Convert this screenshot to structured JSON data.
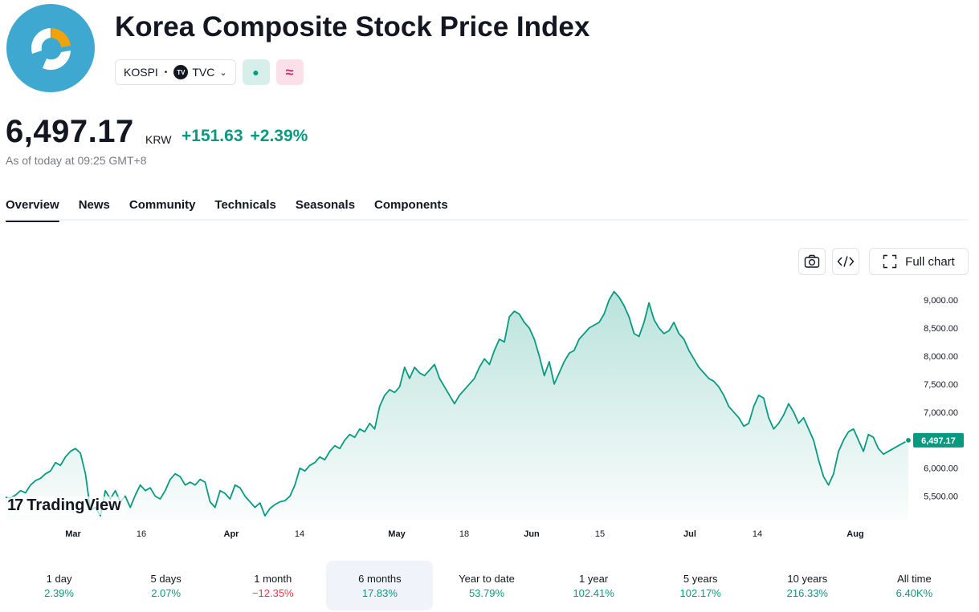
{
  "header": {
    "title": "Korea Composite Stock Price Index",
    "symbol": "KOSPI",
    "exchange": "TVC",
    "exchange_logo": "TV",
    "status_icon": "●",
    "wave_icon": "≈"
  },
  "quote": {
    "price": "6,497.17",
    "currency": "KRW",
    "change": "+151.63",
    "change_pct": "+2.39%",
    "as_of": "As of today at 09:25 GMT+8"
  },
  "tabs": [
    "Overview",
    "News",
    "Community",
    "Technicals",
    "Seasonals",
    "Components"
  ],
  "toolbar": {
    "full_chart_label": "Full chart"
  },
  "brand": {
    "logo_mark": "17",
    "name": "TradingView"
  },
  "colors": {
    "accent": "#089981",
    "negative": "#f23645",
    "text": "#131722"
  },
  "chart_data": {
    "type": "area",
    "xlabels": [
      "Mar",
      "16",
      "Apr",
      "14",
      "May",
      "18",
      "Jun",
      "15",
      "Jul",
      "14",
      "Aug"
    ],
    "yticks": [
      "9,000.00",
      "8,500.00",
      "8,000.00",
      "7,500.00",
      "7,000.00",
      "6,000.00",
      "5,500.00"
    ],
    "ytick_values": [
      9000,
      8500,
      8000,
      7500,
      7000,
      6000,
      5500
    ],
    "ylim": [
      5080,
      9200
    ],
    "last_label": "6,497.17",
    "last_value": 6497.17,
    "series": [
      {
        "values": [
          5480,
          5470,
          5520,
          5600,
          5560,
          5700,
          5780,
          5820,
          5900,
          5950,
          6100,
          6050,
          6200,
          6300,
          6350,
          6270,
          5900,
          5250,
          5300,
          5150,
          5600,
          5450,
          5600,
          5400,
          5500,
          5300,
          5520,
          5700,
          5600,
          5650,
          5500,
          5450,
          5600,
          5800,
          5900,
          5850,
          5700,
          5750,
          5700,
          5800,
          5750,
          5400,
          5300,
          5600,
          5550,
          5450,
          5700,
          5650,
          5500,
          5400,
          5300,
          5380,
          5150,
          5280,
          5350,
          5400,
          5420,
          5500,
          5700,
          6000,
          5950,
          6050,
          6100,
          6200,
          6150,
          6300,
          6400,
          6350,
          6500,
          6600,
          6550,
          6700,
          6650,
          6800,
          6700,
          7100,
          7300,
          7400,
          7350,
          7450,
          7800,
          7600,
          7800,
          7700,
          7650,
          7750,
          7850,
          7600,
          7450,
          7300,
          7150,
          7300,
          7400,
          7500,
          7600,
          7800,
          7950,
          7850,
          8100,
          8300,
          8250,
          8700,
          8800,
          8750,
          8600,
          8500,
          8300,
          8000,
          7650,
          7900,
          7500,
          7700,
          7900,
          8050,
          8100,
          8300,
          8400,
          8500,
          8550,
          8600,
          8750,
          9000,
          9150,
          9050,
          8900,
          8700,
          8400,
          8350,
          8600,
          8950,
          8650,
          8500,
          8400,
          8450,
          8600,
          8400,
          8300,
          8100,
          7950,
          7800,
          7700,
          7600,
          7550,
          7450,
          7300,
          7100,
          7000,
          6900,
          6750,
          6800,
          7100,
          7300,
          7250,
          6900,
          6700,
          6800,
          6950,
          7150,
          7000,
          6800,
          6900,
          6700,
          6500,
          6150,
          5850,
          5700,
          5900,
          6300,
          6500,
          6650,
          6700,
          6500,
          6300,
          6600,
          6550,
          6350,
          6250,
          6300,
          6350,
          6400,
          6450,
          6497
        ]
      }
    ]
  },
  "ranges": [
    {
      "label": "1 day",
      "value": "2.39%",
      "dir": "pos"
    },
    {
      "label": "5 days",
      "value": "2.07%",
      "dir": "pos"
    },
    {
      "label": "1 month",
      "value": "−12.35%",
      "dir": "neg"
    },
    {
      "label": "6 months",
      "value": "17.83%",
      "dir": "pos",
      "active": true
    },
    {
      "label": "Year to date",
      "value": "53.79%",
      "dir": "pos"
    },
    {
      "label": "1 year",
      "value": "102.41%",
      "dir": "pos"
    },
    {
      "label": "5 years",
      "value": "102.17%",
      "dir": "pos"
    },
    {
      "label": "10 years",
      "value": "216.33%",
      "dir": "pos"
    },
    {
      "label": "All time",
      "value": "6.40K%",
      "dir": "pos"
    }
  ]
}
